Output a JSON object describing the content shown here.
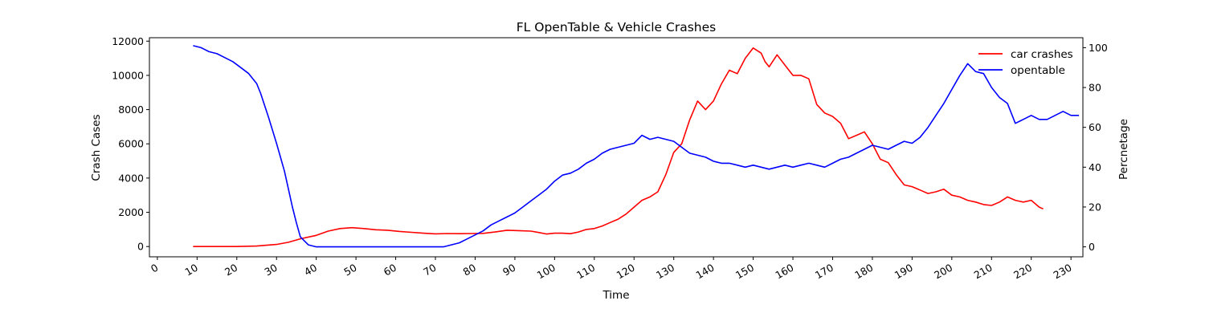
{
  "chart_data": {
    "type": "line",
    "title": "FL OpenTable & Vehicle Crashes",
    "xlabel": "Time",
    "ylabel": "Crash Cases",
    "y2label": "Percnetage",
    "xlim": [
      -2,
      233
    ],
    "ylim": [
      -600,
      12200
    ],
    "y2lim": [
      -5,
      105
    ],
    "x_ticks": [
      0,
      10,
      20,
      30,
      40,
      50,
      60,
      70,
      80,
      90,
      100,
      110,
      120,
      130,
      140,
      150,
      160,
      170,
      180,
      190,
      200,
      210,
      220,
      230
    ],
    "y_ticks": [
      0,
      2000,
      4000,
      6000,
      8000,
      10000,
      12000
    ],
    "y2_ticks": [
      0,
      20,
      40,
      60,
      80,
      100
    ],
    "legend_position": "top-right",
    "grid": false,
    "series": [
      {
        "name": "car crashes",
        "axis": "left",
        "color": "#ff0000",
        "points": [
          [
            9,
            0
          ],
          [
            20,
            0
          ],
          [
            25,
            30
          ],
          [
            30,
            120
          ],
          [
            33,
            250
          ],
          [
            36,
            450
          ],
          [
            40,
            650
          ],
          [
            43,
            900
          ],
          [
            46,
            1050
          ],
          [
            49,
            1100
          ],
          [
            52,
            1050
          ],
          [
            55,
            980
          ],
          [
            58,
            950
          ],
          [
            61,
            880
          ],
          [
            64,
            830
          ],
          [
            67,
            780
          ],
          [
            70,
            740
          ],
          [
            73,
            760
          ],
          [
            76,
            750
          ],
          [
            79,
            760
          ],
          [
            82,
            770
          ],
          [
            85,
            850
          ],
          [
            88,
            950
          ],
          [
            91,
            930
          ],
          [
            94,
            900
          ],
          [
            96,
            820
          ],
          [
            98,
            730
          ],
          [
            100,
            780
          ],
          [
            102,
            780
          ],
          [
            104,
            750
          ],
          [
            106,
            850
          ],
          [
            108,
            1000
          ],
          [
            110,
            1050
          ],
          [
            112,
            1200
          ],
          [
            114,
            1400
          ],
          [
            116,
            1600
          ],
          [
            118,
            1900
          ],
          [
            120,
            2300
          ],
          [
            122,
            2700
          ],
          [
            124,
            2900
          ],
          [
            126,
            3200
          ],
          [
            128,
            4200
          ],
          [
            130,
            5500
          ],
          [
            132,
            6000
          ],
          [
            134,
            7400
          ],
          [
            136,
            8500
          ],
          [
            138,
            8000
          ],
          [
            140,
            8500
          ],
          [
            142,
            9500
          ],
          [
            144,
            10300
          ],
          [
            146,
            10100
          ],
          [
            148,
            11000
          ],
          [
            150,
            11600
          ],
          [
            152,
            11300
          ],
          [
            153,
            10800
          ],
          [
            154,
            10500
          ],
          [
            156,
            11200
          ],
          [
            158,
            10600
          ],
          [
            160,
            10000
          ],
          [
            162,
            10000
          ],
          [
            164,
            9800
          ],
          [
            166,
            8300
          ],
          [
            168,
            7800
          ],
          [
            170,
            7600
          ],
          [
            172,
            7200
          ],
          [
            174,
            6300
          ],
          [
            176,
            6500
          ],
          [
            178,
            6700
          ],
          [
            180,
            6000
          ],
          [
            182,
            5100
          ],
          [
            184,
            4900
          ],
          [
            186,
            4200
          ],
          [
            188,
            3600
          ],
          [
            190,
            3500
          ],
          [
            192,
            3300
          ],
          [
            194,
            3100
          ],
          [
            196,
            3200
          ],
          [
            198,
            3350
          ],
          [
            200,
            3000
          ],
          [
            202,
            2900
          ],
          [
            204,
            2700
          ],
          [
            206,
            2600
          ],
          [
            208,
            2450
          ],
          [
            210,
            2400
          ],
          [
            212,
            2600
          ],
          [
            214,
            2900
          ],
          [
            216,
            2700
          ],
          [
            218,
            2600
          ],
          [
            220,
            2700
          ],
          [
            222,
            2300
          ],
          [
            223,
            2200
          ]
        ]
      },
      {
        "name": "opentable",
        "axis": "right",
        "color": "#0000ff",
        "points": [
          [
            9,
            101
          ],
          [
            11,
            100
          ],
          [
            13,
            98
          ],
          [
            15,
            97
          ],
          [
            17,
            95
          ],
          [
            19,
            93
          ],
          [
            21,
            90
          ],
          [
            23,
            87
          ],
          [
            25,
            82
          ],
          [
            26,
            77
          ],
          [
            28,
            65
          ],
          [
            30,
            52
          ],
          [
            32,
            38
          ],
          [
            34,
            20
          ],
          [
            35,
            12
          ],
          [
            36,
            5
          ],
          [
            38,
            1
          ],
          [
            40,
            0
          ],
          [
            45,
            0
          ],
          [
            50,
            0
          ],
          [
            55,
            0
          ],
          [
            60,
            0
          ],
          [
            65,
            0
          ],
          [
            70,
            0
          ],
          [
            72,
            0
          ],
          [
            74,
            1
          ],
          [
            76,
            2
          ],
          [
            78,
            4
          ],
          [
            80,
            6
          ],
          [
            82,
            8
          ],
          [
            84,
            11
          ],
          [
            86,
            13
          ],
          [
            88,
            15
          ],
          [
            90,
            17
          ],
          [
            92,
            20
          ],
          [
            94,
            23
          ],
          [
            96,
            26
          ],
          [
            98,
            29
          ],
          [
            100,
            33
          ],
          [
            102,
            36
          ],
          [
            104,
            37
          ],
          [
            106,
            39
          ],
          [
            108,
            42
          ],
          [
            110,
            44
          ],
          [
            112,
            47
          ],
          [
            114,
            49
          ],
          [
            116,
            50
          ],
          [
            118,
            51
          ],
          [
            120,
            52
          ],
          [
            122,
            56
          ],
          [
            124,
            54
          ],
          [
            126,
            55
          ],
          [
            128,
            54
          ],
          [
            130,
            53
          ],
          [
            132,
            50
          ],
          [
            134,
            47
          ],
          [
            136,
            46
          ],
          [
            138,
            45
          ],
          [
            140,
            43
          ],
          [
            142,
            42
          ],
          [
            144,
            42
          ],
          [
            146,
            41
          ],
          [
            148,
            40
          ],
          [
            150,
            41
          ],
          [
            152,
            40
          ],
          [
            154,
            39
          ],
          [
            156,
            40
          ],
          [
            158,
            41
          ],
          [
            160,
            40
          ],
          [
            162,
            41
          ],
          [
            164,
            42
          ],
          [
            166,
            41
          ],
          [
            168,
            40
          ],
          [
            170,
            42
          ],
          [
            172,
            44
          ],
          [
            174,
            45
          ],
          [
            176,
            47
          ],
          [
            178,
            49
          ],
          [
            180,
            51
          ],
          [
            182,
            50
          ],
          [
            184,
            49
          ],
          [
            186,
            51
          ],
          [
            188,
            53
          ],
          [
            190,
            52
          ],
          [
            192,
            55
          ],
          [
            194,
            60
          ],
          [
            196,
            66
          ],
          [
            198,
            72
          ],
          [
            200,
            79
          ],
          [
            202,
            86
          ],
          [
            204,
            92
          ],
          [
            206,
            88
          ],
          [
            208,
            87
          ],
          [
            210,
            80
          ],
          [
            212,
            75
          ],
          [
            214,
            72
          ],
          [
            216,
            62
          ],
          [
            218,
            64
          ],
          [
            220,
            66
          ],
          [
            222,
            64
          ],
          [
            224,
            64
          ],
          [
            226,
            66
          ],
          [
            228,
            68
          ],
          [
            230,
            66
          ],
          [
            232,
            66
          ]
        ]
      }
    ]
  }
}
